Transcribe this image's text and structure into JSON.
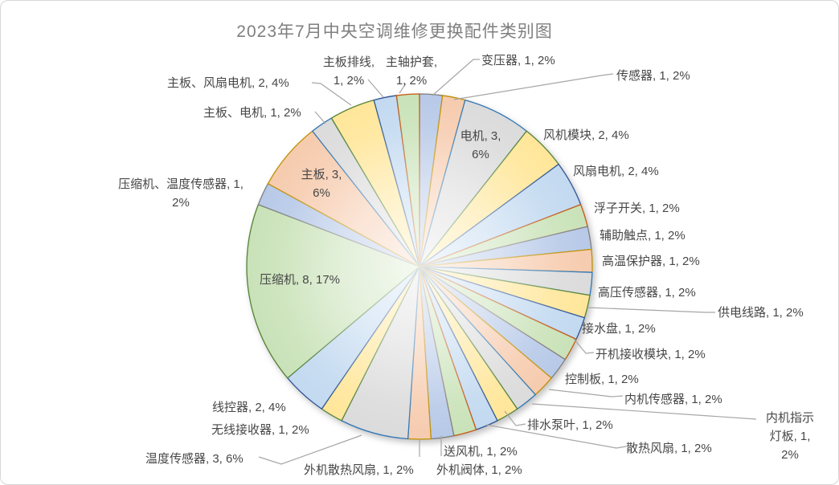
{
  "window": {
    "background": "#FFFFFF",
    "border_color": "#D6D6D6"
  },
  "chart_data": {
    "type": "pie",
    "title": "2023年7月中央空调维修更换配件类别图",
    "title_color": "#7F7F7F",
    "legend": "none",
    "total_units": 47,
    "start_angle_deg": 0,
    "direction": "clockwise",
    "label_format": "name, value, percent",
    "slices": [
      {
        "name": "变压器",
        "value": 1,
        "pct": "2%"
      },
      {
        "name": "传感器",
        "value": 1,
        "pct": "2%"
      },
      {
        "name": "电机",
        "value": 3,
        "pct": "6%"
      },
      {
        "name": "风机模块",
        "value": 2,
        "pct": "4%"
      },
      {
        "name": "风扇电机",
        "value": 2,
        "pct": "4%"
      },
      {
        "name": "浮子开关",
        "value": 1,
        "pct": "2%"
      },
      {
        "name": "辅助触点",
        "value": 1,
        "pct": "2%"
      },
      {
        "name": "高温保护器",
        "value": 1,
        "pct": "2%"
      },
      {
        "name": "高压传感器",
        "value": 1,
        "pct": "2%"
      },
      {
        "name": "供电线路",
        "value": 1,
        "pct": "2%"
      },
      {
        "name": "接水盘",
        "value": 1,
        "pct": "2%"
      },
      {
        "name": "开机接收模块",
        "value": 1,
        "pct": "2%"
      },
      {
        "name": "控制板",
        "value": 1,
        "pct": "2%"
      },
      {
        "name": "内机传感器",
        "value": 1,
        "pct": "2%"
      },
      {
        "name": "内机指示灯板",
        "value": 1,
        "pct": "2%"
      },
      {
        "name": "排水泵叶",
        "value": 1,
        "pct": "2%"
      },
      {
        "name": "散热风扇",
        "value": 1,
        "pct": "2%"
      },
      {
        "name": "送风机",
        "value": 1,
        "pct": "2%"
      },
      {
        "name": "外机阀体",
        "value": 1,
        "pct": "2%"
      },
      {
        "name": "外机散热风扇",
        "value": 1,
        "pct": "2%"
      },
      {
        "name": "温度传感器",
        "value": 3,
        "pct": "6%"
      },
      {
        "name": "无线接收器",
        "value": 1,
        "pct": "2%"
      },
      {
        "name": "线控器",
        "value": 2,
        "pct": "4%"
      },
      {
        "name": "压缩机",
        "value": 8,
        "pct": "17%"
      },
      {
        "name": "压缩机、温度传感器",
        "value": 1,
        "pct": "2%"
      },
      {
        "name": "主板",
        "value": 3,
        "pct": "6%"
      },
      {
        "name": "主板、电机",
        "value": 1,
        "pct": "2%"
      },
      {
        "name": "主板、风扇电机",
        "value": 2,
        "pct": "4%"
      },
      {
        "name": "主板排线",
        "value": 1,
        "pct": "2%"
      },
      {
        "name": "主轴护套",
        "value": 1,
        "pct": "2%"
      }
    ],
    "palette": {
      "fills": [
        "#B7C9E8",
        "#F6CBAE",
        "#DBDBDB",
        "#FFE699",
        "#C2D9F0",
        "#C9E2B8"
      ],
      "borders": [
        "#2F5597",
        "#C55A11",
        "#7F7F7F",
        "#BF9000",
        "#2E75B6",
        "#548235"
      ],
      "compressor_border": "#548235",
      "leader_line": "#A6A6A6",
      "label_color": "#474747"
    }
  }
}
